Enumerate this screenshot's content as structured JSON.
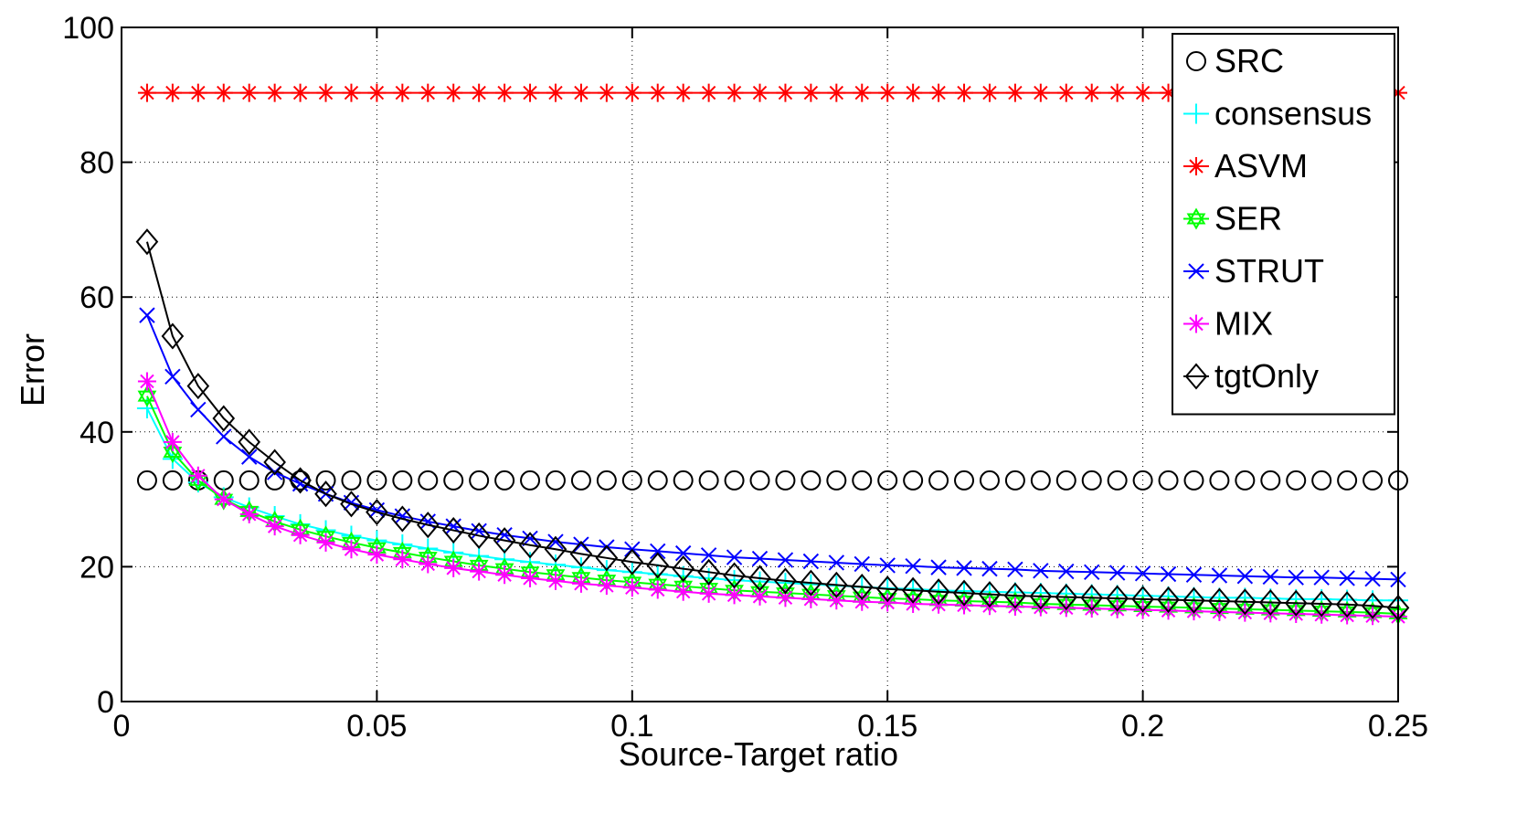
{
  "chart_data": {
    "type": "line",
    "xlabel": "Source-Target ratio",
    "ylabel": "Error",
    "xlim": [
      0,
      0.25
    ],
    "ylim": [
      0,
      100
    ],
    "x_ticks": [
      "0",
      "0.05",
      "0.1",
      "0.15",
      "0.2",
      "0.25"
    ],
    "y_ticks": [
      "0",
      "20",
      "40",
      "60",
      "80",
      "100"
    ],
    "x_tick_values": [
      0,
      0.05,
      0.1,
      0.15,
      0.2,
      0.25
    ],
    "y_tick_values": [
      0,
      20,
      40,
      60,
      80,
      100
    ],
    "grid": true,
    "grid_style": "dotted",
    "legend_position": "top-right",
    "x": [
      0.005,
      0.01,
      0.015,
      0.02,
      0.025,
      0.03,
      0.035,
      0.04,
      0.045,
      0.05,
      0.055,
      0.06,
      0.065,
      0.07,
      0.075,
      0.08,
      0.085,
      0.09,
      0.095,
      0.1,
      0.105,
      0.11,
      0.115,
      0.12,
      0.125,
      0.13,
      0.135,
      0.14,
      0.145,
      0.15,
      0.155,
      0.16,
      0.165,
      0.17,
      0.175,
      0.18,
      0.185,
      0.19,
      0.195,
      0.2,
      0.205,
      0.21,
      0.215,
      0.22,
      0.225,
      0.23,
      0.235,
      0.24,
      0.245,
      0.25
    ],
    "series": [
      {
        "name": "SRC",
        "color": "#000000",
        "marker": "circle",
        "line": false,
        "values": [
          32.8,
          32.8,
          32.8,
          32.8,
          32.8,
          32.8,
          32.8,
          32.8,
          32.8,
          32.8,
          32.8,
          32.8,
          32.8,
          32.8,
          32.8,
          32.8,
          32.8,
          32.8,
          32.8,
          32.8,
          32.8,
          32.8,
          32.8,
          32.8,
          32.8,
          32.8,
          32.8,
          32.8,
          32.8,
          32.8,
          32.8,
          32.8,
          32.8,
          32.8,
          32.8,
          32.8,
          32.8,
          32.8,
          32.8,
          32.8,
          32.8,
          32.8,
          32.8,
          32.8,
          32.8,
          32.8,
          32.8,
          32.8,
          32.8,
          32.8
        ]
      },
      {
        "name": "consensus",
        "color": "#00ffff",
        "marker": "plus",
        "line": true,
        "values": [
          43.5,
          36.0,
          32.5,
          30.3,
          28.8,
          27.5,
          26.3,
          25.4,
          24.6,
          23.9,
          23.3,
          22.7,
          22.1,
          21.6,
          21.1,
          20.7,
          20.3,
          19.9,
          19.5,
          19.2,
          18.9,
          18.6,
          18.3,
          18.0,
          17.8,
          17.6,
          17.4,
          17.2,
          17.0,
          16.8,
          16.7,
          16.5,
          16.4,
          16.3,
          16.2,
          16.1,
          16.0,
          15.9,
          15.8,
          15.7,
          15.6,
          15.5,
          15.4,
          15.4,
          15.3,
          15.2,
          15.2,
          15.1,
          15.0,
          15.0
        ]
      },
      {
        "name": "ASVM",
        "color": "#ff0000",
        "marker": "asterisk",
        "line": true,
        "values": [
          90.3,
          90.3,
          90.3,
          90.3,
          90.3,
          90.3,
          90.3,
          90.3,
          90.3,
          90.3,
          90.3,
          90.3,
          90.3,
          90.3,
          90.3,
          90.3,
          90.3,
          90.3,
          90.3,
          90.3,
          90.3,
          90.3,
          90.3,
          90.3,
          90.3,
          90.3,
          90.3,
          90.3,
          90.3,
          90.3,
          90.3,
          90.3,
          90.3,
          90.3,
          90.3,
          90.3,
          90.3,
          90.3,
          90.3,
          90.3,
          90.3,
          90.3,
          90.3,
          90.3,
          90.3,
          90.3,
          90.3,
          90.3,
          90.3,
          90.3
        ]
      },
      {
        "name": "SER",
        "color": "#00ff00",
        "marker": "hexagram",
        "line": true,
        "values": [
          45.3,
          37.0,
          32.8,
          30.0,
          28.2,
          26.7,
          25.5,
          24.5,
          23.6,
          22.8,
          22.1,
          21.4,
          20.8,
          20.2,
          19.7,
          19.2,
          18.8,
          18.4,
          18.0,
          17.7,
          17.4,
          17.1,
          16.8,
          16.5,
          16.3,
          16.1,
          15.9,
          15.7,
          15.5,
          15.3,
          15.2,
          15.0,
          14.9,
          14.8,
          14.7,
          14.5,
          14.4,
          14.3,
          14.2,
          14.1,
          14.0,
          13.9,
          13.8,
          13.7,
          13.6,
          13.5,
          13.4,
          13.3,
          13.2,
          13.0
        ]
      },
      {
        "name": "STRUT",
        "color": "#0000ff",
        "marker": "cross",
        "line": true,
        "values": [
          57.3,
          48.2,
          43.3,
          39.3,
          36.3,
          34.0,
          32.3,
          30.8,
          29.5,
          28.4,
          27.5,
          26.7,
          26.0,
          25.3,
          24.7,
          24.2,
          23.7,
          23.3,
          22.9,
          22.6,
          22.3,
          22.0,
          21.7,
          21.4,
          21.2,
          21.0,
          20.8,
          20.6,
          20.4,
          20.2,
          20.1,
          19.9,
          19.8,
          19.7,
          19.6,
          19.4,
          19.3,
          19.2,
          19.1,
          19.0,
          18.9,
          18.8,
          18.7,
          18.6,
          18.5,
          18.4,
          18.4,
          18.3,
          18.2,
          18.1
        ]
      },
      {
        "name": "MIX",
        "color": "#ff00ff",
        "marker": "asterisk",
        "line": true,
        "values": [
          47.5,
          38.5,
          33.5,
          30.0,
          27.8,
          26.0,
          24.7,
          23.6,
          22.6,
          21.8,
          21.1,
          20.4,
          19.8,
          19.3,
          18.8,
          18.3,
          17.9,
          17.5,
          17.2,
          16.9,
          16.6,
          16.3,
          16.0,
          15.8,
          15.6,
          15.4,
          15.2,
          15.0,
          14.8,
          14.7,
          14.5,
          14.4,
          14.3,
          14.2,
          14.1,
          14.0,
          13.9,
          13.8,
          13.7,
          13.6,
          13.5,
          13.4,
          13.3,
          13.2,
          13.1,
          13.0,
          12.9,
          12.8,
          12.7,
          12.6
        ]
      },
      {
        "name": "tgtOnly",
        "color": "#000000",
        "marker": "diamond",
        "line": true,
        "values": [
          68.2,
          54.2,
          46.8,
          42.0,
          38.5,
          35.5,
          32.8,
          30.8,
          29.3,
          28.1,
          27.1,
          26.2,
          25.4,
          24.6,
          23.9,
          23.2,
          22.6,
          21.9,
          21.3,
          20.7,
          20.2,
          19.7,
          19.2,
          18.7,
          18.3,
          17.9,
          17.6,
          17.3,
          17.0,
          16.7,
          16.5,
          16.3,
          16.1,
          15.9,
          15.7,
          15.6,
          15.5,
          15.4,
          15.3,
          15.2,
          15.1,
          15.0,
          14.9,
          14.8,
          14.7,
          14.6,
          14.5,
          14.4,
          14.2,
          13.9
        ]
      }
    ]
  }
}
